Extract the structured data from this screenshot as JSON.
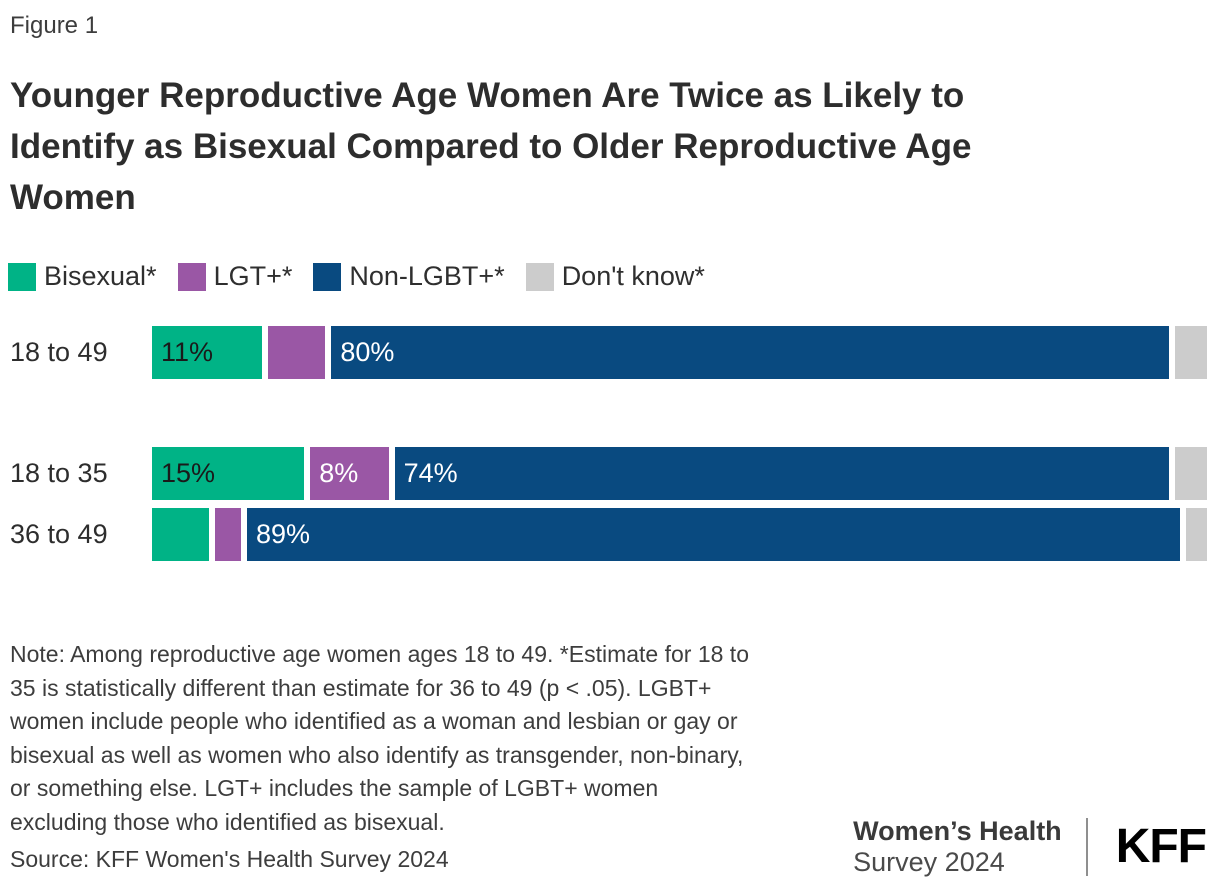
{
  "figure_label": "Figure 1",
  "title_lines": [
    "Younger Reproductive Age Women Are Twice as Likely to",
    "Identify as Bisexual Compared to Older Reproductive Age",
    "Women"
  ],
  "colors": {
    "bisexual": "#00b386",
    "lgt_plus": "#9a57a5",
    "non_lgbt_plus": "#094a80",
    "dont_know": "#cccccc",
    "label_dark": "#1a1a1a",
    "label_light": "#ffffff"
  },
  "chart_data": {
    "type": "bar",
    "orientation": "horizontal",
    "stacked": true,
    "unit": "%",
    "title": "Younger Reproductive Age Women Are Twice as Likely to Identify as Bisexual Compared to Older Reproductive Age Women",
    "categories": [
      "18 to 49",
      "18 to 35",
      "36 to 49"
    ],
    "series": [
      {
        "name": "Bisexual*",
        "color_key": "bisexual",
        "values": [
          11,
          15,
          6
        ],
        "show_label": [
          true,
          true,
          false
        ],
        "label_color_key": "label_dark"
      },
      {
        "name": "LGT+*",
        "color_key": "lgt_plus",
        "values": [
          6,
          8,
          3
        ],
        "show_label": [
          false,
          true,
          false
        ],
        "label_color_key": "label_light"
      },
      {
        "name": "Non-LGBT+*",
        "color_key": "non_lgbt_plus",
        "values": [
          80,
          74,
          89
        ],
        "show_label": [
          true,
          true,
          true
        ],
        "label_color_key": "label_light"
      },
      {
        "name": "Don't know*",
        "color_key": "dont_know",
        "values": [
          3,
          3,
          2
        ],
        "show_label": [
          false,
          false,
          false
        ],
        "label_color_key": "label_dark"
      }
    ],
    "xlim": [
      0,
      100
    ],
    "legend_position": "top",
    "value_label_format": "{v}%",
    "grid": false
  },
  "note_lines": [
    "Note: Among reproductive age women ages 18 to 49. *Estimate for 18 to",
    "35 is statistically different than estimate for 36 to 49 (p < .05). LGBT+",
    "women include people who identified as a woman and lesbian or gay or",
    "bisexual as well as women who also identify as transgender, non-binary,",
    "or something else. LGT+ includes the sample of LGBT+ women",
    "excluding those who identified as bisexual."
  ],
  "source": "Source: KFF Women's Health Survey 2024",
  "footer": {
    "program_line1": "Women’s Health",
    "program_line2": "Survey 2024",
    "logo": "KFF"
  }
}
